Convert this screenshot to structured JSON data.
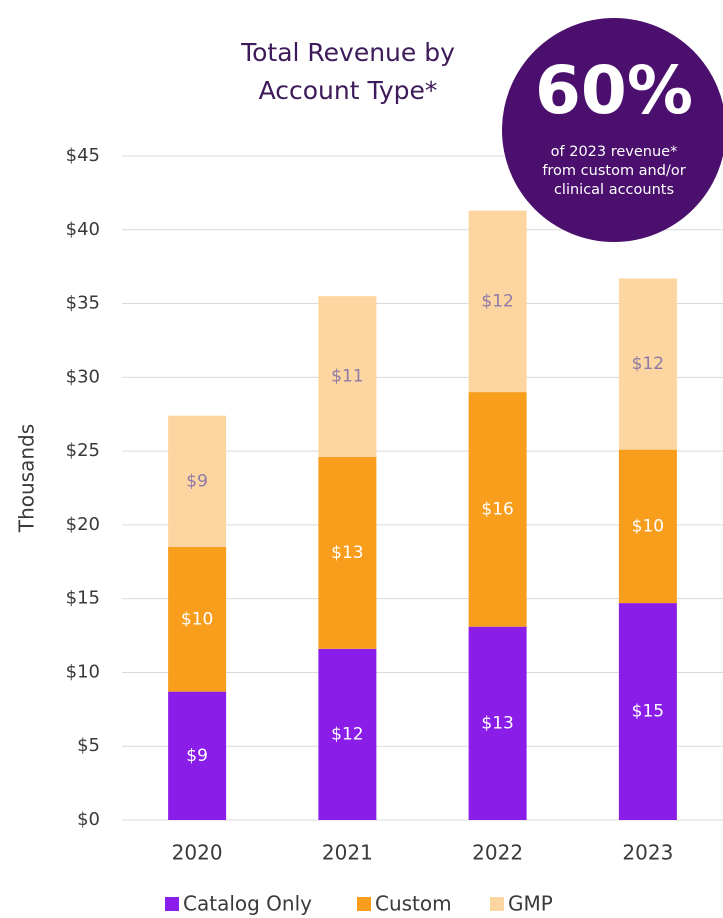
{
  "chart_data": {
    "type": "stacked_bar",
    "title": "Total Revenue by Account Type*",
    "y_label": "Thousands",
    "categories": [
      "2020",
      "2021",
      "2022",
      "2023"
    ],
    "series": [
      {
        "name": "Catalog Only",
        "color": "#8a1ee8",
        "label_color": "#ffffff",
        "values": [
          8.7,
          11.6,
          13.1,
          14.7
        ],
        "value_labels": [
          "$9",
          "$12",
          "$13",
          "$15"
        ]
      },
      {
        "name": "Custom",
        "color": "#f99d1c",
        "label_color": "#ffffff",
        "values": [
          9.8,
          13.0,
          15.9,
          10.4
        ],
        "value_labels": [
          "$10",
          "$13",
          "$16",
          "$10"
        ]
      },
      {
        "name": "GMP",
        "color": "#fdd5a0",
        "label_color": "#8e7aa8",
        "values": [
          8.9,
          10.9,
          12.3,
          11.6
        ],
        "value_labels": [
          "$9",
          "$11",
          "$12",
          "$12"
        ]
      }
    ],
    "ylim": [
      0,
      45
    ],
    "yticks": [
      {
        "value": 0,
        "label": "$0"
      },
      {
        "value": 5,
        "label": "$5"
      },
      {
        "value": 10,
        "label": "$10"
      },
      {
        "value": 15,
        "label": "$15"
      },
      {
        "value": 20,
        "label": "$20"
      },
      {
        "value": 25,
        "label": "$25"
      },
      {
        "value": 30,
        "label": "$30"
      },
      {
        "value": 35,
        "label": "$35"
      },
      {
        "value": 40,
        "label": "$40"
      },
      {
        "value": 45,
        "label": "$45"
      }
    ],
    "grid": true,
    "callout": {
      "headline": "60%",
      "lines": [
        "of 2023 revenue*",
        "from custom and/or",
        "clinical accounts"
      ],
      "color": "#4b0f6e"
    }
  }
}
